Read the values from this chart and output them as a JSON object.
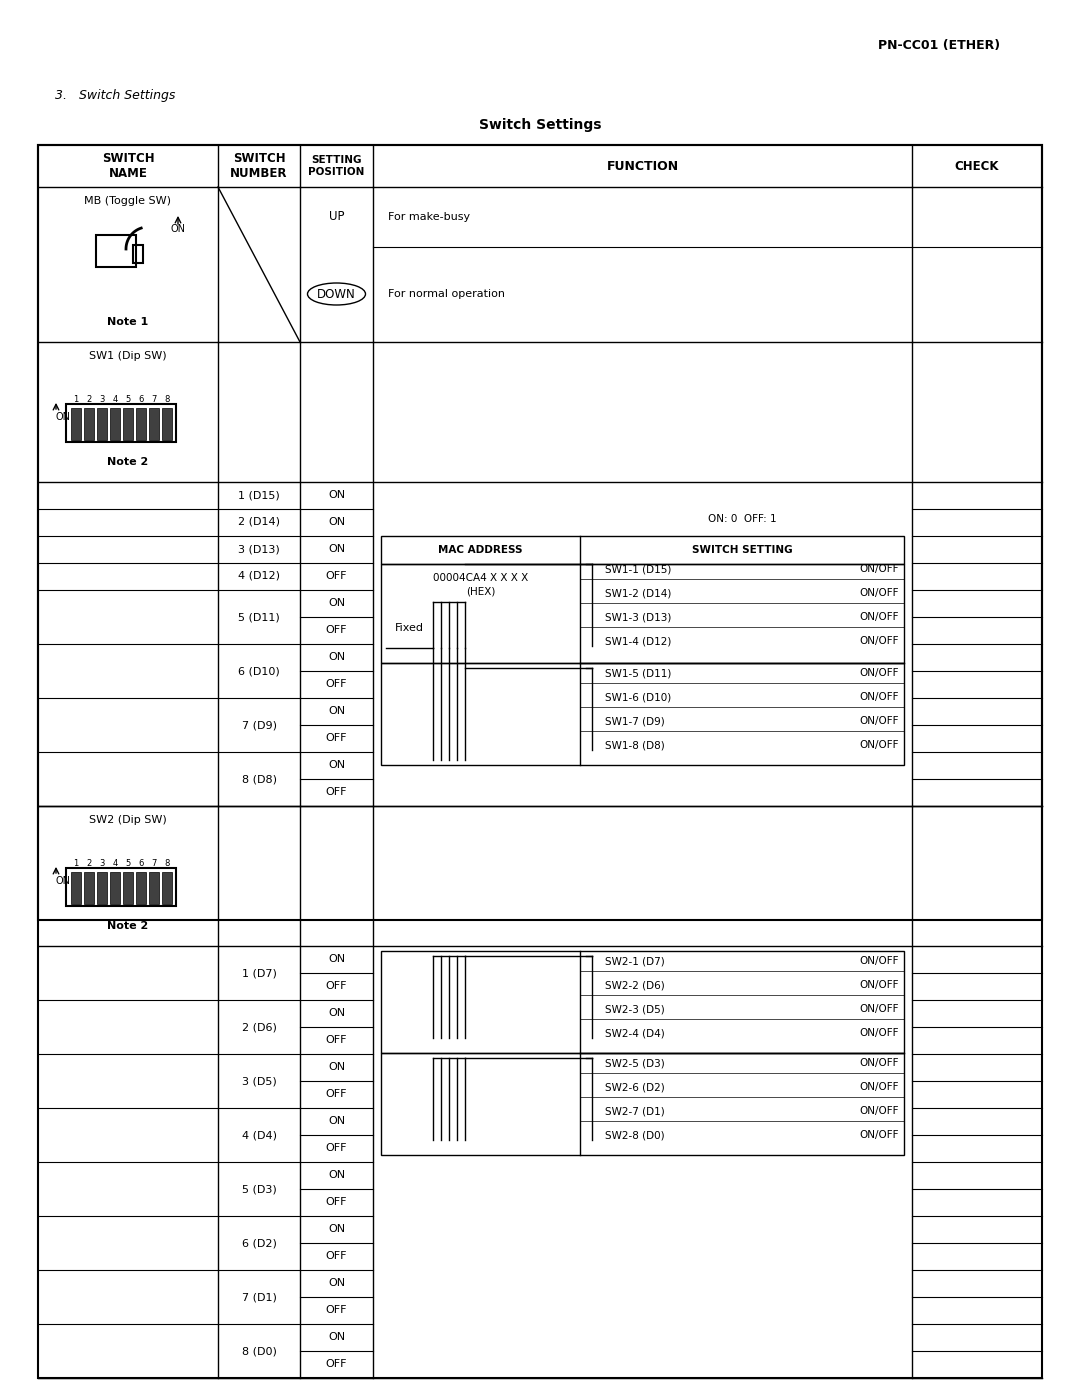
{
  "page_header": "PN-CC01 (ETHER)",
  "section_title": "3.   Switch Settings",
  "table_title": "Switch Settings",
  "bg_color": "#ffffff"
}
